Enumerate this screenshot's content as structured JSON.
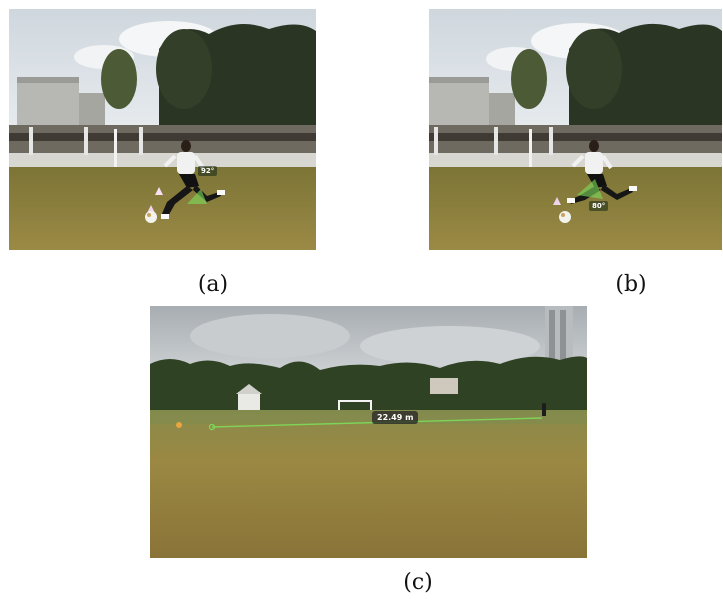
{
  "figure": {
    "panels": [
      {
        "caption": "(a)",
        "measurement_label": "92°"
      },
      {
        "caption": "(b)",
        "measurement_label": "80°"
      },
      {
        "caption": "(c)",
        "measurement_label": "22.49 m"
      }
    ]
  },
  "colors": {
    "sky": "#dde3e8",
    "grass": "#8e7c3c",
    "trees": "#2f3a24",
    "measure_overlay": "#7ddc5a"
  }
}
